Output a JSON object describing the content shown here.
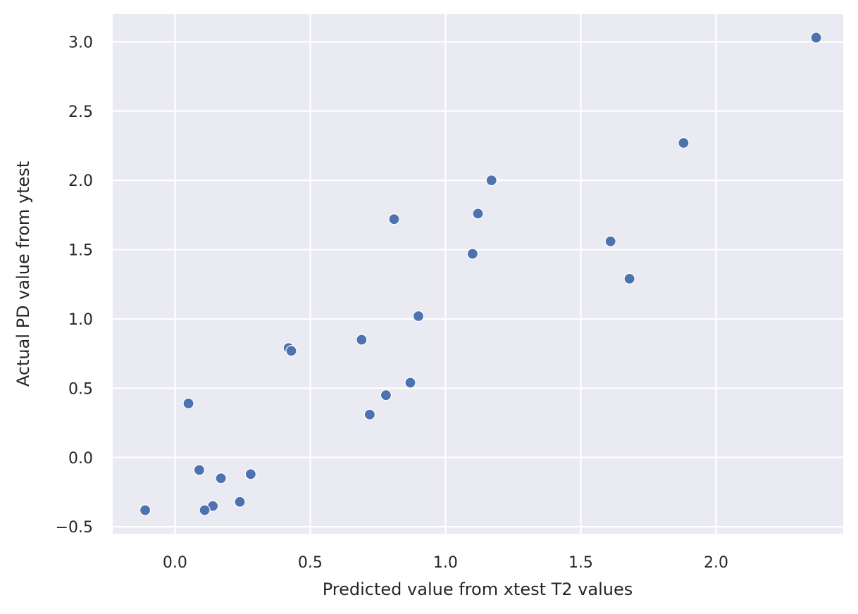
{
  "chart_data": {
    "type": "scatter",
    "title": "",
    "xlabel": "Predicted value from xtest T2 values",
    "ylabel": "Actual PD value from ytest",
    "xlim": [
      -0.23,
      2.47
    ],
    "ylim": [
      -0.55,
      3.2
    ],
    "xticks": [
      0.0,
      0.5,
      1.0,
      1.5,
      2.0
    ],
    "xtick_labels": [
      "0.0",
      "0.5",
      "1.0",
      "1.5",
      "2.0"
    ],
    "yticks": [
      -0.5,
      0.0,
      0.5,
      1.0,
      1.5,
      2.0,
      2.5,
      3.0
    ],
    "ytick_labels": [
      "−0.5",
      "0.0",
      "0.5",
      "1.0",
      "1.5",
      "2.0",
      "2.5",
      "3.0"
    ],
    "grid": true,
    "colors": {
      "background": "#eaeaf2",
      "grid": "#ffffff",
      "marker": "#4c72b0",
      "marker_edge": "#ffffff",
      "text": "#262626"
    },
    "points": [
      {
        "x": 2.37,
        "y": 3.03
      },
      {
        "x": 1.88,
        "y": 2.27
      },
      {
        "x": 1.17,
        "y": 2.0
      },
      {
        "x": 1.12,
        "y": 1.76
      },
      {
        "x": 0.81,
        "y": 1.72
      },
      {
        "x": 1.61,
        "y": 1.56
      },
      {
        "x": 1.1,
        "y": 1.47
      },
      {
        "x": 1.68,
        "y": 1.29
      },
      {
        "x": 0.9,
        "y": 1.02
      },
      {
        "x": 0.69,
        "y": 0.85
      },
      {
        "x": 0.42,
        "y": 0.79
      },
      {
        "x": 0.43,
        "y": 0.77
      },
      {
        "x": 0.87,
        "y": 0.54
      },
      {
        "x": 0.78,
        "y": 0.45
      },
      {
        "x": 0.72,
        "y": 0.31
      },
      {
        "x": 0.05,
        "y": 0.39
      },
      {
        "x": 0.09,
        "y": -0.09
      },
      {
        "x": 0.17,
        "y": -0.15
      },
      {
        "x": 0.28,
        "y": -0.12
      },
      {
        "x": 0.24,
        "y": -0.32
      },
      {
        "x": 0.14,
        "y": -0.35
      },
      {
        "x": 0.11,
        "y": -0.38
      },
      {
        "x": -0.11,
        "y": -0.38
      }
    ]
  }
}
